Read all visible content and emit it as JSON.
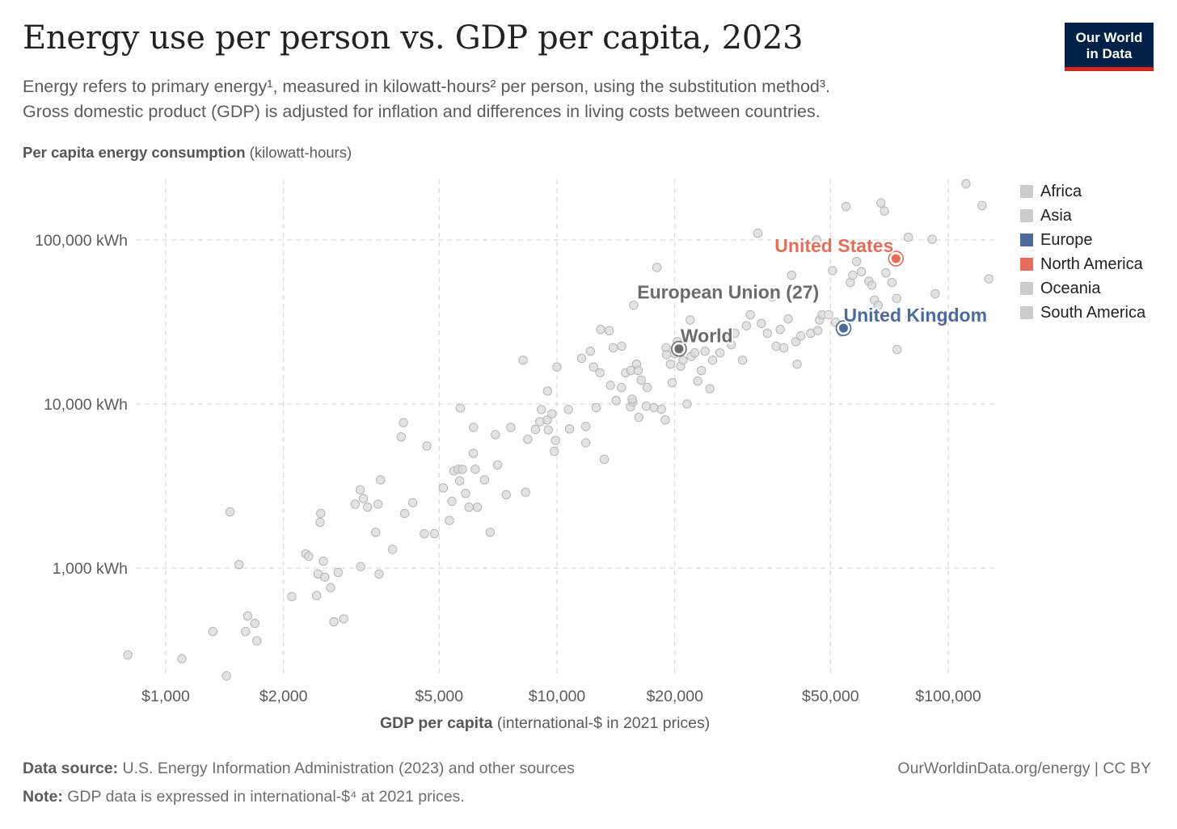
{
  "title": "Energy use per person vs. GDP per capita, 2023",
  "subtitle": [
    "Energy refers to primary energy¹, measured in kilowatt-hours² per person, using the substitution method³.",
    "Gross domestic product (GDP) is adjusted for inflation and differences in living costs between countries."
  ],
  "logo": {
    "line1": "Our World",
    "line2": "in Data"
  },
  "y_axis": {
    "label_bold": "Per capita energy consumption",
    "label_rest": " (kilowatt-hours)"
  },
  "x_axis": {
    "label_bold": "GDP per capita",
    "label_rest": " (international-$ in 2021 prices)"
  },
  "legend": [
    {
      "name": "Africa",
      "color": "#cccccc"
    },
    {
      "name": "Asia",
      "color": "#cccccc"
    },
    {
      "name": "Europe",
      "color": "#4c6a9c"
    },
    {
      "name": "North America",
      "color": "#e56e5a"
    },
    {
      "name": "Oceania",
      "color": "#cccccc"
    },
    {
      "name": "South America",
      "color": "#cccccc"
    }
  ],
  "footer": {
    "source_label": "Data source:",
    "source_text": " U.S. Energy Information Administration (2023) and other sources",
    "note_label": "Note:",
    "note_text": " GDP data is expressed in international-$⁴ at 2021 prices.",
    "right": "OurWorldinData.org/energy | CC BY"
  },
  "chart_data": {
    "type": "scatter",
    "title": "Energy use per person vs. GDP per capita, 2023",
    "xlabel": "GDP per capita (international-$ in 2021 prices)",
    "ylabel": "Per capita energy consumption (kilowatt-hours)",
    "x_scale": "log",
    "y_scale": "log",
    "xlim": [
      800,
      130000
    ],
    "ylim": [
      210,
      230000
    ],
    "x_ticks": [
      {
        "value": 1000,
        "label": "$1,000"
      },
      {
        "value": 2000,
        "label": "$2,000"
      },
      {
        "value": 5000,
        "label": "$5,000"
      },
      {
        "value": 10000,
        "label": "$10,000"
      },
      {
        "value": 20000,
        "label": "$20,000"
      },
      {
        "value": 50000,
        "label": "$50,000"
      },
      {
        "value": 100000,
        "label": "$100,000"
      }
    ],
    "y_ticks": [
      {
        "value": 1000,
        "label": "1,000 kWh"
      },
      {
        "value": 10000,
        "label": "10,000 kWh"
      },
      {
        "value": 100000,
        "label": "100,000 kWh"
      }
    ],
    "grid": true,
    "legend_position": "right",
    "highlighted": [
      {
        "name": "United States",
        "x": 73500,
        "y": 77000,
        "color": "#e56e5a"
      },
      {
        "name": "United Kingdom",
        "x": 54000,
        "y": 29000,
        "color": "#4c6a9c"
      },
      {
        "name": "World",
        "x": 20500,
        "y": 21700,
        "color": "#6b6b6b"
      },
      {
        "name": "European Union (27)",
        "x": 49500,
        "y": 35000,
        "color": "#6b6b6b"
      }
    ],
    "background_color": "#d9d9d9",
    "points": [
      [
        800,
        295
      ],
      [
        1100,
        280
      ],
      [
        1320,
        410
      ],
      [
        1430,
        220
      ],
      [
        1460,
        2200
      ],
      [
        1540,
        1050
      ],
      [
        1620,
        510
      ],
      [
        1600,
        410
      ],
      [
        1690,
        460
      ],
      [
        1710,
        360
      ],
      [
        2100,
        670
      ],
      [
        2280,
        1220
      ],
      [
        2320,
        1180
      ],
      [
        2430,
        680
      ],
      [
        2450,
        920
      ],
      [
        2480,
        1900
      ],
      [
        2490,
        2150
      ],
      [
        2530,
        1100
      ],
      [
        2550,
        880
      ],
      [
        2640,
        760
      ],
      [
        2690,
        470
      ],
      [
        2760,
        940
      ],
      [
        2850,
        490
      ],
      [
        3050,
        2450
      ],
      [
        3140,
        3000
      ],
      [
        3150,
        1020
      ],
      [
        3200,
        2650
      ],
      [
        3280,
        2350
      ],
      [
        3440,
        1650
      ],
      [
        3490,
        2450
      ],
      [
        3540,
        3450
      ],
      [
        3510,
        920
      ],
      [
        3800,
        1300
      ],
      [
        4000,
        6300
      ],
      [
        4050,
        7700
      ],
      [
        4080,
        2150
      ],
      [
        4280,
        2500
      ],
      [
        4580,
        1620
      ],
      [
        4650,
        5550
      ],
      [
        4860,
        1620
      ],
      [
        5120,
        3080
      ],
      [
        5310,
        1950
      ],
      [
        5390,
        2550
      ],
      [
        5450,
        3900
      ],
      [
        5590,
        4000
      ],
      [
        5660,
        9450
      ],
      [
        5640,
        3400
      ],
      [
        5730,
        4000
      ],
      [
        5840,
        2850
      ],
      [
        5960,
        2350
      ],
      [
        6120,
        7200
      ],
      [
        6110,
        5000
      ],
      [
        6180,
        4000
      ],
      [
        6260,
        2350
      ],
      [
        6530,
        3450
      ],
      [
        6750,
        1650
      ],
      [
        6960,
        6500
      ],
      [
        7050,
        4250
      ],
      [
        7420,
        2800
      ],
      [
        7620,
        7200
      ],
      [
        8190,
        18500
      ],
      [
        8310,
        2900
      ],
      [
        8420,
        6100
      ],
      [
        8810,
        7000
      ],
      [
        9040,
        7800
      ],
      [
        9120,
        9250
      ],
      [
        9450,
        8000
      ],
      [
        9500,
        6950
      ],
      [
        9460,
        12000
      ],
      [
        9710,
        8700
      ],
      [
        9920,
        6000
      ],
      [
        9840,
        5150
      ],
      [
        10000,
        16800
      ],
      [
        10700,
        9250
      ],
      [
        10770,
        7050
      ],
      [
        11560,
        19000
      ],
      [
        11850,
        7300
      ],
      [
        11850,
        5800
      ],
      [
        12170,
        21000
      ],
      [
        12400,
        16800
      ],
      [
        12600,
        9500
      ],
      [
        12930,
        28500
      ],
      [
        12880,
        15500
      ],
      [
        13210,
        4600
      ],
      [
        13600,
        28000
      ],
      [
        13700,
        13000
      ],
      [
        13930,
        22000
      ],
      [
        14160,
        10500
      ],
      [
        14640,
        22500
      ],
      [
        14620,
        12600
      ],
      [
        14970,
        15500
      ],
      [
        15420,
        9600
      ],
      [
        15450,
        16000
      ],
      [
        15620,
        10300
      ],
      [
        15560,
        10700
      ],
      [
        15700,
        40000
      ],
      [
        15980,
        17500
      ],
      [
        16190,
        8300
      ],
      [
        16120,
        16000
      ],
      [
        16420,
        14000
      ],
      [
        16920,
        9700
      ],
      [
        17000,
        12600
      ],
      [
        17690,
        9500
      ],
      [
        18000,
        68000
      ],
      [
        18500,
        9300
      ],
      [
        18900,
        8000
      ],
      [
        19000,
        22000
      ],
      [
        19050,
        20000
      ],
      [
        19500,
        17500
      ],
      [
        19700,
        13500
      ],
      [
        20000,
        20300
      ],
      [
        20300,
        24000
      ],
      [
        20700,
        17000
      ],
      [
        21000,
        18500
      ],
      [
        21500,
        10000
      ],
      [
        21900,
        32500
      ],
      [
        22050,
        19500
      ],
      [
        22500,
        20500
      ],
      [
        22900,
        13800
      ],
      [
        23400,
        16000
      ],
      [
        23900,
        21000
      ],
      [
        24600,
        12400
      ],
      [
        25000,
        18500
      ],
      [
        26100,
        20500
      ],
      [
        27000,
        25000
      ],
      [
        27900,
        23000
      ],
      [
        28500,
        27000
      ],
      [
        29800,
        18500
      ],
      [
        30500,
        30000
      ],
      [
        31200,
        35000
      ],
      [
        31300,
        47000
      ],
      [
        32600,
        110000
      ],
      [
        33300,
        31000
      ],
      [
        34500,
        27000
      ],
      [
        35500,
        45000
      ],
      [
        36300,
        22500
      ],
      [
        37200,
        28500
      ],
      [
        38000,
        22000
      ],
      [
        39000,
        33000
      ],
      [
        39800,
        61000
      ],
      [
        40800,
        24000
      ],
      [
        41100,
        17500
      ],
      [
        42000,
        26000
      ],
      [
        44500,
        27000
      ],
      [
        46100,
        100000
      ],
      [
        46400,
        28000
      ],
      [
        46900,
        32500
      ],
      [
        47600,
        35000
      ],
      [
        50600,
        65000
      ],
      [
        51500,
        31500
      ],
      [
        53300,
        27500
      ],
      [
        54800,
        160000
      ],
      [
        56200,
        55000
      ],
      [
        57000,
        61000
      ],
      [
        58300,
        74000
      ],
      [
        60000,
        64000
      ],
      [
        62700,
        56000
      ],
      [
        63800,
        53000
      ],
      [
        64800,
        43000
      ],
      [
        66200,
        40000
      ],
      [
        67300,
        168000
      ],
      [
        68700,
        150000
      ],
      [
        69300,
        63000
      ],
      [
        71800,
        55000
      ],
      [
        73800,
        44000
      ],
      [
        74000,
        21500
      ],
      [
        79000,
        104000
      ],
      [
        79900,
        34000
      ],
      [
        91000,
        101000
      ],
      [
        92600,
        47000
      ],
      [
        111000,
        220000
      ],
      [
        122000,
        162000
      ],
      [
        127000,
        58000
      ]
    ]
  }
}
